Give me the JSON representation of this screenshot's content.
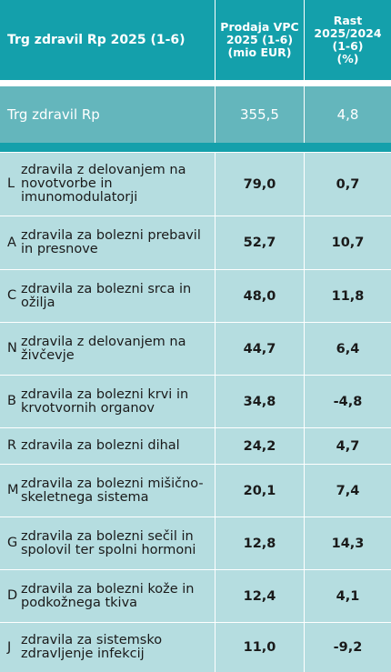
{
  "header": {
    "title": "Trg zdravil Rp 2025 (1-6)",
    "sales": [
      "Prodaja VPC",
      "2025 (1-6)",
      "(mio EUR)"
    ],
    "growth": [
      "Rast",
      "2025/2024",
      "(1-6)",
      "(%)"
    ]
  },
  "summary": {
    "label": "Trg zdravil Rp",
    "sales": "355,5",
    "growth": "4,8"
  },
  "rows": [
    {
      "code": "L",
      "name": "zdravila z delovanjem na novotvorbe in imunomodulatorji",
      "sales": "79,0",
      "growth": "0,7"
    },
    {
      "code": "A",
      "name": "zdravila za bolezni prebavil in presnove",
      "sales": "52,7",
      "growth": "10,7"
    },
    {
      "code": "C",
      "name": "zdravila za bolezni srca in ožilja",
      "sales": "48,0",
      "growth": "11,8"
    },
    {
      "code": "N",
      "name": "zdravila z delovanjem na živčevje",
      "sales": "44,7",
      "growth": "6,4"
    },
    {
      "code": "B",
      "name": "zdravila za bolezni krvi in krvotvornih organov",
      "sales": "34,8",
      "growth": "-4,8"
    },
    {
      "code": "R",
      "name": "zdravila za bolezni dihal",
      "sales": "24,2",
      "growth": "4,7"
    },
    {
      "code": "M",
      "name": "zdravila za bolezni mišično-skeletnega sistema",
      "sales": "20,1",
      "growth": "7,4"
    },
    {
      "code": "G",
      "name": "zdravila za bolezni sečil in spolovil ter spolni hormoni",
      "sales": "12,8",
      "growth": "14,3"
    },
    {
      "code": "D",
      "name": "zdravila za bolezni kože in podkožnega tkiva",
      "sales": "12,4",
      "growth": "4,1"
    },
    {
      "code": "J",
      "name": "zdravila za sistemsko zdravljenje infekcij",
      "sales": "11,0",
      "growth": "-9,2"
    }
  ]
}
